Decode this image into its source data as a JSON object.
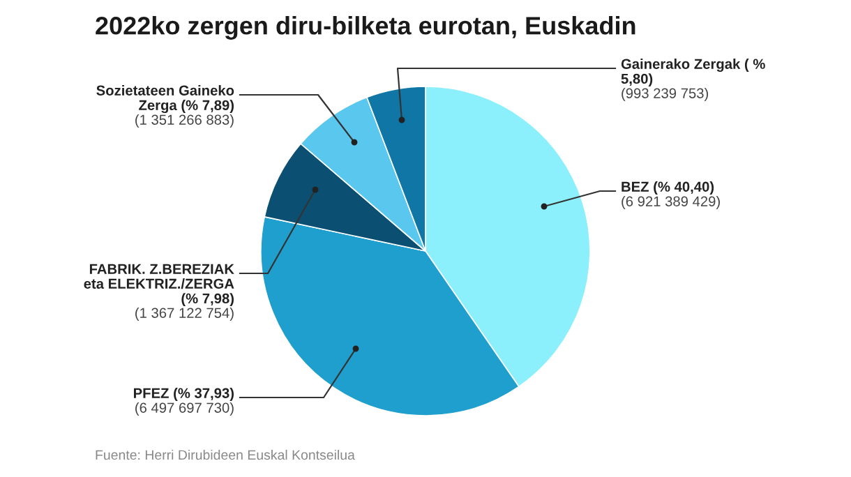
{
  "chart_data": {
    "type": "pie",
    "title": "2022ko zergen diru-bilketa eurotan, Euskadin",
    "categories": [
      "BEZ (% 40,40)",
      "PFEZ (% 37,93)",
      "FABRIK. Z.BEREZIAK\neta ELEKTRIZ./ZERGA\n(% 7,98)",
      "Sozietateen Gaineko\nZerga (% 7,89)",
      "Gainerako Zergak ( %\n5,80)"
    ],
    "values": [
      6921389429,
      6497697730,
      1367122754,
      1351266883,
      993239753
    ],
    "value_labels": [
      "(6 921 389 429)",
      "(6 497 697 730)",
      "(1 367 122 754)",
      "(1 351 266 883)",
      "(993 239 753)"
    ],
    "colors": [
      "#8cf0fc",
      "#1f9fcd",
      "#0b5073",
      "#5ac7ef",
      "#0f76a6"
    ],
    "annotations": [
      "Fuente: Herri Dirubideen Euskal Kontseilua"
    ]
  }
}
